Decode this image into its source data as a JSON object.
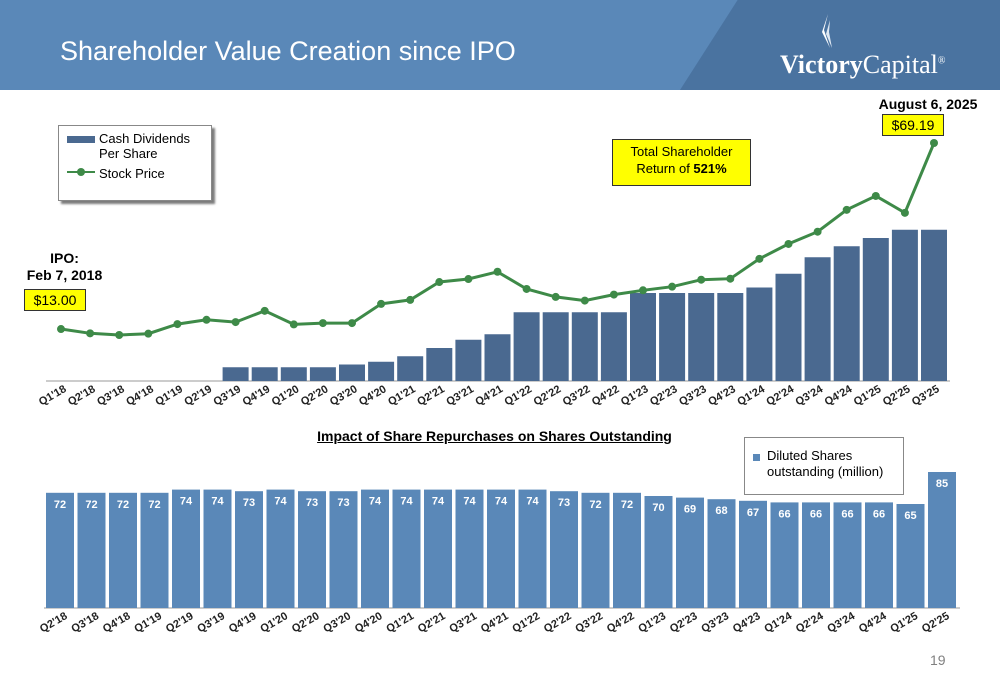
{
  "header": {
    "title": "Shareholder Value Creation since IPO",
    "logo_bold": "Victory",
    "logo_light": "Capital",
    "logo_mark": "®",
    "bg_color": "#5a88b8"
  },
  "page_number": "19",
  "chart_data": [
    {
      "type": "bar",
      "categories": [
        "Q1'18",
        "Q2'18",
        "Q3'18",
        "Q4'18",
        "Q1'19",
        "Q2'19",
        "Q3'19",
        "Q4'19",
        "Q1'20",
        "Q2'20",
        "Q3'20",
        "Q4'20",
        "Q1'21",
        "Q2'21",
        "Q3'21",
        "Q4'21",
        "Q1'22",
        "Q2'22",
        "Q3'22",
        "Q4'22",
        "Q1'23",
        "Q2'23",
        "Q3'23",
        "Q4'23",
        "Q1'24",
        "Q2'24",
        "Q3'24",
        "Q4'24",
        "Q1'25",
        "Q2'25",
        "Q3'25"
      ],
      "series": [
        {
          "name": "Cash Dividends Per Share",
          "type": "bar",
          "color": "#4a6990",
          "values": [
            0,
            0,
            0,
            0,
            0,
            0,
            0.05,
            0.05,
            0.05,
            0.05,
            0.06,
            0.07,
            0.09,
            0.12,
            0.15,
            0.17,
            0.25,
            0.25,
            0.25,
            0.25,
            0.32,
            0.32,
            0.32,
            0.32,
            0.34,
            0.39,
            0.45,
            0.49,
            0.52,
            0.55,
            0.55
          ]
        },
        {
          "name": "Stock Price",
          "type": "line",
          "color": "#3e8a48",
          "values": [
            13.0,
            11.7,
            11.2,
            11.6,
            14.5,
            15.8,
            15.1,
            18.5,
            14.4,
            14.8,
            14.8,
            20.6,
            21.8,
            27.2,
            28.1,
            30.3,
            25.1,
            22.7,
            21.6,
            23.4,
            24.7,
            25.8,
            27.9,
            28.2,
            34.2,
            38.7,
            42.4,
            49.0,
            53.2,
            48.1,
            69.19
          ]
        }
      ],
      "annotations": {
        "ipo_label_line1": "IPO:",
        "ipo_label_line2": "Feb 7, 2018",
        "ipo_price": "$13.00",
        "end_date": "August 6, 2025",
        "end_price": "$69.19",
        "tsr_line1": "Total Shareholder",
        "tsr_line2_prefix": "Return of ",
        "tsr_value": "521%"
      },
      "legend": {
        "bar_label_line1": "Cash Dividends",
        "bar_label_line2": "Per Share",
        "line_label": "Stock Price",
        "placement": "top-left"
      }
    },
    {
      "type": "bar",
      "title": "Impact of Share Repurchases on Shares Outstanding",
      "categories": [
        "Q2'18",
        "Q3'18",
        "Q4'18",
        "Q1'19",
        "Q2'19",
        "Q3'19",
        "Q4'19",
        "Q1'20",
        "Q2'20",
        "Q3'20",
        "Q4'20",
        "Q1'21",
        "Q2'21",
        "Q3'21",
        "Q4'21",
        "Q1'22",
        "Q2'22",
        "Q3'22",
        "Q4'22",
        "Q1'23",
        "Q2'23",
        "Q3'23",
        "Q4'23",
        "Q1'24",
        "Q2'24",
        "Q3'24",
        "Q4'24",
        "Q1'25",
        "Q2'25"
      ],
      "series": [
        {
          "name": "Diluted Shares outstanding (million)",
          "color": "#5a88b8",
          "values": [
            72,
            72,
            72,
            72,
            74,
            74,
            73,
            74,
            73,
            73,
            74,
            74,
            74,
            74,
            74,
            74,
            73,
            72,
            72,
            70,
            69,
            68,
            67,
            66,
            66,
            66,
            66,
            65,
            85
          ]
        }
      ],
      "legend": {
        "line1": "Diluted Shares",
        "line2": "outstanding (million)",
        "placement": "top-right"
      }
    }
  ]
}
